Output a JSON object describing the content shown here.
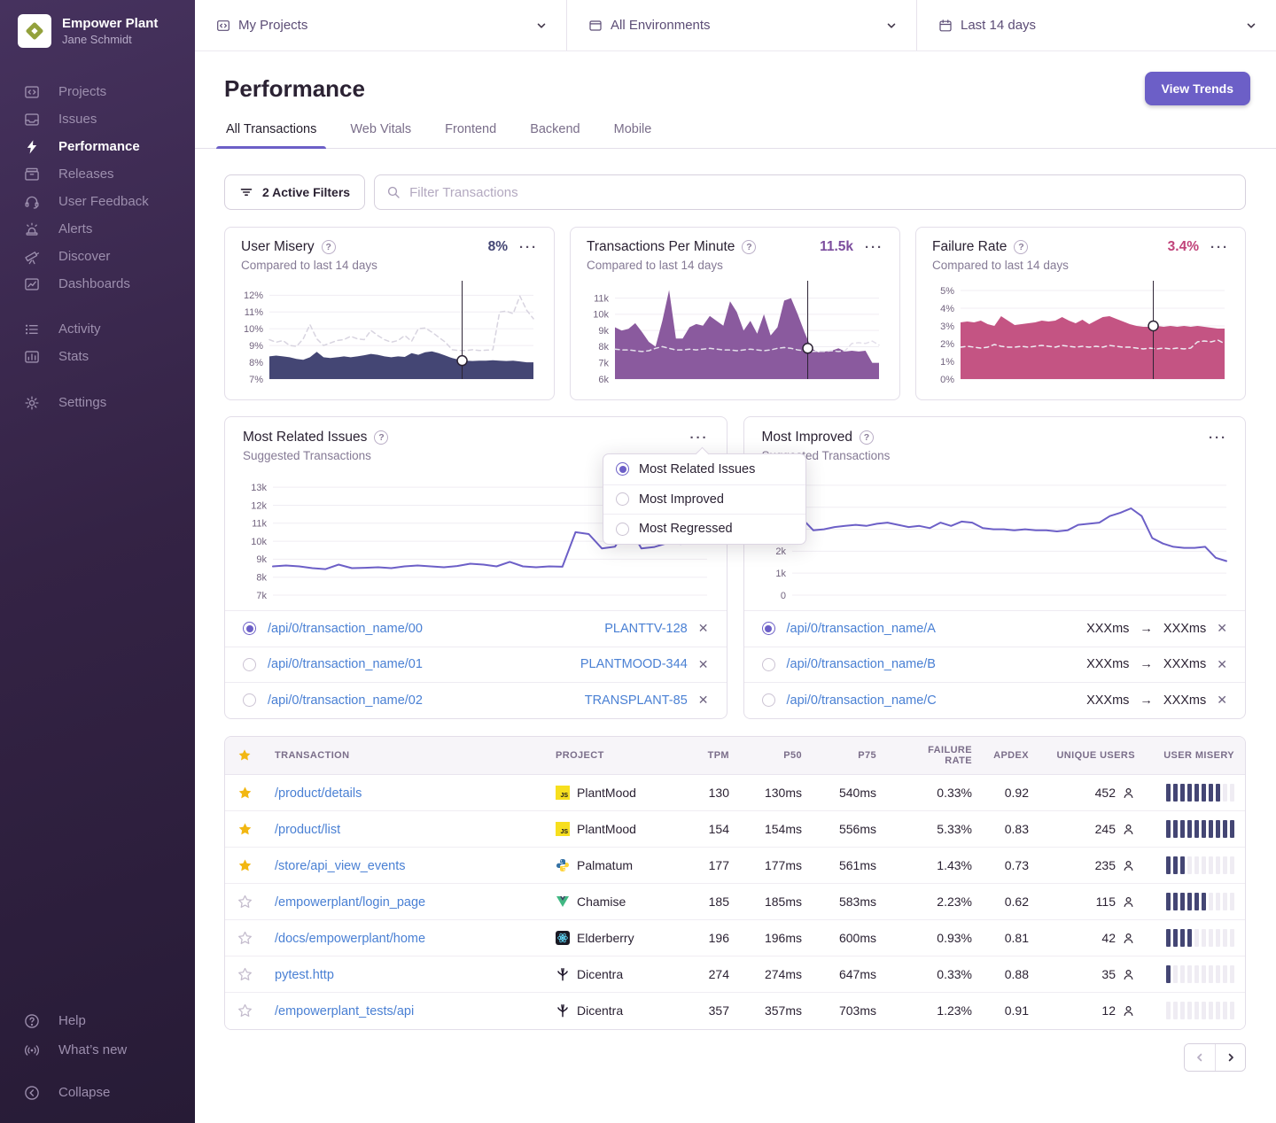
{
  "ui": {
    "dots": "···",
    "close": "✕",
    "arrow": "→",
    "help": "?",
    "js_label": "JS"
  },
  "org": {
    "name": "Empower Plant",
    "user": "Jane Schmidt"
  },
  "sidebar": {
    "primary": [
      {
        "label": "Projects"
      },
      {
        "label": "Issues"
      },
      {
        "label": "Performance",
        "active": true
      },
      {
        "label": "Releases"
      },
      {
        "label": "User Feedback"
      },
      {
        "label": "Alerts"
      },
      {
        "label": "Discover"
      },
      {
        "label": "Dashboards"
      }
    ],
    "secondary": [
      {
        "label": "Activity"
      },
      {
        "label": "Stats"
      }
    ],
    "settings": {
      "label": "Settings"
    },
    "footer": [
      {
        "label": "Help"
      },
      {
        "label": "What’s new"
      }
    ],
    "collapse": {
      "label": "Collapse"
    }
  },
  "topbar": {
    "projects": {
      "label": "My Projects"
    },
    "environments": {
      "label": "All Environments"
    },
    "daterange": {
      "label": "Last 14 days"
    }
  },
  "header": {
    "title": "Performance",
    "view_trends": "View Trends",
    "tabs": [
      {
        "label": "All Transactions",
        "active": true
      },
      {
        "label": "Web Vitals"
      },
      {
        "label": "Frontend"
      },
      {
        "label": "Backend"
      },
      {
        "label": "Mobile"
      }
    ]
  },
  "filters": {
    "active_filters": "2 Active Filters",
    "search_placeholder": "Filter Transactions"
  },
  "cards": [
    {
      "title": "User Misery",
      "value": "8%",
      "subtitle": "Compared to last 14 days",
      "chart_data": {
        "type": "area",
        "unit": "%",
        "ylim": [
          7,
          12.6
        ],
        "yticks": [
          {
            "v": 12,
            "label": "12%"
          },
          {
            "v": 11,
            "label": "11%"
          },
          {
            "v": 10,
            "label": "10%"
          },
          {
            "v": 9,
            "label": "9%"
          },
          {
            "v": 8,
            "label": "8%"
          },
          {
            "v": 7,
            "label": "7%"
          }
        ],
        "series": [
          {
            "name": "previous period",
            "style": "dashed",
            "color": "#d8d4e0",
            "values": [
              9.35,
              9.2,
              9.3,
              9.0,
              8.95,
              9.4,
              10.25,
              9.4,
              9.0,
              9.15,
              9.3,
              9.35,
              9.55,
              9.4,
              9.35,
              9.9,
              9.6,
              9.35,
              9.2,
              9.3,
              9.6,
              9.25,
              10.0,
              10.05,
              9.8,
              9.5,
              9.2,
              8.75,
              8.7,
              8.7,
              8.75,
              8.7,
              8.72,
              8.75,
              11.0,
              11.05,
              10.9,
              11.95,
              11.1,
              10.6
            ]
          },
          {
            "name": "current period",
            "style": "area",
            "color": "#444674",
            "values": [
              8.35,
              8.4,
              8.35,
              8.3,
              8.2,
              8.15,
              8.3,
              8.62,
              8.3,
              8.25,
              8.3,
              8.35,
              8.3,
              8.35,
              8.42,
              8.5,
              8.45,
              8.35,
              8.3,
              8.35,
              8.32,
              8.55,
              8.45,
              8.6,
              8.65,
              8.55,
              8.4,
              8.25,
              8.15,
              8.1,
              8.08,
              8.1,
              8.1,
              8.12,
              8.1,
              8.08,
              8.1,
              8.05,
              8.0,
              8.0
            ]
          }
        ],
        "cursor": {
          "x_frac": 0.73,
          "value": 8.1
        }
      }
    },
    {
      "title": "Transactions Per Minute",
      "value": "11.5k",
      "subtitle": "Compared to last 14 days",
      "chart_data": {
        "type": "area",
        "unit": "k",
        "ylim": [
          6,
          11.8
        ],
        "yticks": [
          {
            "v": 11,
            "label": "11k"
          },
          {
            "v": 10,
            "label": "10k"
          },
          {
            "v": 9,
            "label": "9k"
          },
          {
            "v": 8,
            "label": "8k"
          },
          {
            "v": 7,
            "label": "7k"
          },
          {
            "v": 6,
            "label": "6k"
          }
        ],
        "series": [
          {
            "name": "current period",
            "style": "area",
            "color": "#8a5a9e",
            "values": [
              9.2,
              9.0,
              9.1,
              9.45,
              8.9,
              8.3,
              8.0,
              9.6,
              11.5,
              8.5,
              8.5,
              9.2,
              9.4,
              9.3,
              9.9,
              9.6,
              9.3,
              10.8,
              10.15,
              9.0,
              9.6,
              8.8,
              10.0,
              8.7,
              9.2,
              10.85,
              11.0,
              10.0,
              8.9,
              7.9,
              7.65,
              7.7,
              7.75,
              7.9,
              7.7,
              7.75,
              7.7,
              7.75,
              7.0,
              7.0
            ]
          },
          {
            "name": "previous period",
            "style": "dashed",
            "color": "#e3dfea",
            "values": [
              7.85,
              7.8,
              7.8,
              7.75,
              7.7,
              7.75,
              7.9,
              8.0,
              7.9,
              7.8,
              7.8,
              7.85,
              7.8,
              7.85,
              7.9,
              7.85,
              7.8,
              7.8,
              7.75,
              7.8,
              7.85,
              7.8,
              7.75,
              7.8,
              7.9,
              7.95,
              7.9,
              7.8,
              7.75,
              7.7,
              7.72,
              7.7,
              7.75,
              7.7,
              7.75,
              8.2,
              8.25,
              8.2,
              8.35,
              8.1
            ]
          }
        ],
        "cursor": {
          "x_frac": 0.73,
          "value": 7.9
        }
      }
    },
    {
      "title": "Failure Rate",
      "value": "3.4%",
      "subtitle": "Compared to last 14 days",
      "chart_data": {
        "type": "area",
        "unit": "%",
        "ylim": [
          0,
          5.3
        ],
        "yticks": [
          {
            "v": 5,
            "label": "5%"
          },
          {
            "v": 4,
            "label": "4%"
          },
          {
            "v": 3,
            "label": "3%"
          },
          {
            "v": 2,
            "label": "2%"
          },
          {
            "v": 1,
            "label": "1%"
          },
          {
            "v": 0,
            "label": "0%"
          }
        ],
        "series": [
          {
            "name": "current period",
            "style": "area",
            "color": "#c45483",
            "values": [
              3.2,
              3.25,
              3.2,
              3.3,
              3.1,
              3.0,
              3.55,
              3.3,
              3.05,
              3.1,
              3.15,
              3.2,
              3.3,
              3.25,
              3.3,
              3.5,
              3.3,
              3.15,
              3.35,
              3.1,
              3.3,
              3.5,
              3.55,
              3.4,
              3.25,
              3.1,
              3.0,
              2.95,
              2.95,
              3.0,
              2.95,
              3.0,
              2.95,
              3.0,
              2.95,
              3.0,
              2.95,
              2.9,
              2.85,
              2.85
            ]
          },
          {
            "name": "previous period",
            "style": "dashed",
            "color": "#eeebf2",
            "values": [
              1.8,
              1.85,
              1.8,
              1.75,
              1.8,
              1.95,
              1.85,
              1.8,
              1.8,
              1.85,
              1.8,
              1.85,
              1.9,
              1.85,
              1.8,
              1.9,
              1.85,
              1.8,
              1.85,
              1.8,
              1.85,
              1.8,
              1.9,
              1.85,
              1.8,
              1.8,
              1.75,
              1.7,
              1.75,
              1.7,
              1.75,
              1.7,
              1.75,
              1.7,
              1.75,
              2.1,
              2.15,
              2.1,
              2.2,
              2.0
            ]
          }
        ],
        "cursor": {
          "x_frac": 0.73,
          "value": 3.0
        }
      }
    }
  ],
  "panels": [
    {
      "title": "Most Related Issues",
      "subtitle": "Suggested Transactions",
      "chart_data": {
        "type": "line",
        "unit": "k",
        "ylim": [
          7,
          13.6
        ],
        "yticks": [
          {
            "v": 13,
            "label": "13k"
          },
          {
            "v": 12,
            "label": "12k"
          },
          {
            "v": 11,
            "label": "11k"
          },
          {
            "v": 10,
            "label": "10k"
          },
          {
            "v": 9,
            "label": "9k"
          },
          {
            "v": 8,
            "label": "8k"
          },
          {
            "v": 7,
            "label": "7k"
          }
        ],
        "series": [
          {
            "name": "transactions",
            "style": "line",
            "color": "#6c5fc7",
            "values": [
              8.6,
              8.65,
              8.6,
              8.5,
              8.45,
              8.7,
              8.5,
              8.52,
              8.55,
              8.5,
              8.6,
              8.65,
              8.6,
              8.55,
              8.62,
              8.75,
              8.7,
              8.6,
              8.85,
              8.6,
              8.55,
              8.6,
              8.58,
              10.5,
              10.4,
              9.6,
              9.7,
              10.9,
              9.6,
              9.68,
              9.9,
              9.85,
              9.95,
              9.9
            ]
          }
        ]
      },
      "rows": [
        {
          "transaction": "/api/0/transaction_name/00",
          "issue": "PLANTTV-128",
          "selected": true
        },
        {
          "transaction": "/api/0/transaction_name/01",
          "issue": "PLANTMOOD-344",
          "selected": false
        },
        {
          "transaction": "/api/0/transaction_name/02",
          "issue": "TRANSPLANT-85",
          "selected": false
        }
      ]
    },
    {
      "title": "Most Improved",
      "subtitle": "Suggested Transactions",
      "chart_data": {
        "type": "line",
        "unit": "k",
        "ylim": [
          0,
          5.4
        ],
        "yticks": [
          {
            "v": 5,
            "label": ""
          },
          {
            "v": 4,
            "label": ""
          },
          {
            "v": 3,
            "label": ""
          },
          {
            "v": 2,
            "label": "2k"
          },
          {
            "v": 1,
            "label": "1k"
          },
          {
            "v": 0,
            "label": "0"
          }
        ],
        "series": [
          {
            "name": "transactions",
            "style": "line",
            "color": "#6c5fc7",
            "values": [
              3.1,
              3.45,
              2.95,
              3.0,
              3.1,
              3.15,
              3.2,
              3.15,
              3.25,
              3.3,
              3.2,
              3.1,
              3.15,
              3.05,
              3.3,
              3.15,
              3.35,
              3.3,
              3.05,
              3.0,
              3.0,
              2.95,
              3.0,
              2.95,
              2.95,
              2.9,
              2.95,
              3.2,
              3.25,
              3.3,
              3.6,
              3.75,
              3.95,
              3.6,
              2.6,
              2.35,
              2.2,
              2.15,
              2.15,
              2.2,
              1.7,
              1.55
            ]
          }
        ]
      },
      "rows": [
        {
          "transaction": "/api/0/transaction_name/A",
          "from": "XXXms",
          "to": "XXXms",
          "selected": true
        },
        {
          "transaction": "/api/0/transaction_name/B",
          "from": "XXXms",
          "to": "XXXms",
          "selected": false
        },
        {
          "transaction": "/api/0/transaction_name/C",
          "from": "XXXms",
          "to": "XXXms",
          "selected": false
        }
      ]
    }
  ],
  "dropdown": {
    "options": [
      {
        "label": "Most Related Issues",
        "selected": true
      },
      {
        "label": "Most Improved",
        "selected": false
      },
      {
        "label": "Most Regressed",
        "selected": false
      }
    ]
  },
  "table": {
    "columns": [
      "TRANSACTION",
      "PROJECT",
      "TPM",
      "P50",
      "P75",
      "FAILURE RATE",
      "APDEX",
      "UNIQUE USERS",
      "USER MISERY"
    ],
    "rows": [
      {
        "starred": true,
        "transaction": "/product/details",
        "project": "PlantMood",
        "platform": "javascript",
        "tpm": "130",
        "p50": "130ms",
        "p75": "540ms",
        "failure_rate": "0.33%",
        "apdex": "0.92",
        "users": "452",
        "misery_filled": 8
      },
      {
        "starred": true,
        "transaction": "/product/list",
        "project": "PlantMood",
        "platform": "javascript",
        "tpm": "154",
        "p50": "154ms",
        "p75": "556ms",
        "failure_rate": "5.33%",
        "apdex": "0.83",
        "users": "245",
        "misery_filled": 10
      },
      {
        "starred": true,
        "transaction": "/store/api_view_events",
        "project": "Palmatum",
        "platform": "python",
        "tpm": "177",
        "p50": "177ms",
        "p75": "561ms",
        "failure_rate": "1.43%",
        "apdex": "0.73",
        "users": "235",
        "misery_filled": 3
      },
      {
        "starred": false,
        "transaction": "/empowerplant/login_page",
        "project": "Chamise",
        "platform": "vue",
        "tpm": "185",
        "p50": "185ms",
        "p75": "583ms",
        "failure_rate": "2.23%",
        "apdex": "0.62",
        "users": "115",
        "misery_filled": 6
      },
      {
        "starred": false,
        "transaction": "/docs/empowerplant/home",
        "project": "Elderberry",
        "platform": "react",
        "tpm": "196",
        "p50": "196ms",
        "p75": "600ms",
        "failure_rate": "0.93%",
        "apdex": "0.81",
        "users": "42",
        "misery_filled": 4
      },
      {
        "starred": false,
        "transaction": "pytest.http",
        "project": "Dicentra",
        "platform": "pytest",
        "tpm": "274",
        "p50": "274ms",
        "p75": "647ms",
        "failure_rate": "0.33%",
        "apdex": "0.88",
        "users": "35",
        "misery_filled": 1
      },
      {
        "starred": false,
        "transaction": "/empowerplant_tests/api",
        "project": "Dicentra",
        "platform": "pytest",
        "tpm": "357",
        "p50": "357ms",
        "p75": "703ms",
        "failure_rate": "1.23%",
        "apdex": "0.91",
        "users": "12",
        "misery_filled": 0
      }
    ]
  }
}
